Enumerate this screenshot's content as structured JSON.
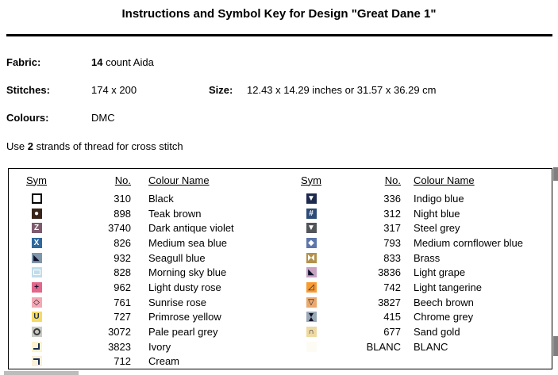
{
  "title": "Instructions and Symbol Key for Design \"Great Dane 1\"",
  "info": {
    "fabric_label": "Fabric:",
    "fabric_count": "14",
    "fabric_rest": " count Aida",
    "stitches_label": "Stitches:",
    "stitches_value": "174 x 200",
    "size_label": "Size:",
    "size_value": "12.43 x 14.29 inches or 31.57 x 36.29 cm",
    "colours_label": "Colours:",
    "colours_value": "DMC",
    "strands_prefix": "Use ",
    "strands_count": "2",
    "strands_suffix": " strands of thread for cross stitch"
  },
  "key_table": {
    "headers": {
      "sym": "Sym",
      "no": "No.",
      "name": "Colour Name"
    },
    "left_rows": [
      {
        "no": "310",
        "name": "Black",
        "sym": {
          "kind": "square-outline",
          "bg": "#ffffff",
          "fg": "#000000"
        }
      },
      {
        "no": "898",
        "name": "Teak brown",
        "sym": {
          "kind": "char",
          "bg": "#3a241a",
          "fg": "#ffffff",
          "char": "●"
        }
      },
      {
        "no": "3740",
        "name": "Dark antique violet",
        "sym": {
          "kind": "char",
          "bg": "#7e5a6d",
          "fg": "#ffffff",
          "char": "Z"
        }
      },
      {
        "no": "826",
        "name": "Medium sea blue",
        "sym": {
          "kind": "char",
          "bg": "#2f689d",
          "fg": "#ffffff",
          "char": "X"
        }
      },
      {
        "no": "932",
        "name": "Seagull blue",
        "sym": {
          "kind": "char",
          "bg": "#8096ab",
          "fg": "#10102a",
          "char": "◣"
        }
      },
      {
        "no": "828",
        "name": "Morning sky blue",
        "sym": {
          "kind": "rect",
          "bg": "#c0dcea",
          "fg": "#ffffff"
        }
      },
      {
        "no": "962",
        "name": "Light dusty rose",
        "sym": {
          "kind": "char",
          "bg": "#e2678b",
          "fg": "#10102a",
          "char": "+"
        }
      },
      {
        "no": "761",
        "name": "Sunrise rose",
        "sym": {
          "kind": "char",
          "bg": "#f2a9b4",
          "fg": "#10102a",
          "char": "◇"
        }
      },
      {
        "no": "727",
        "name": "Primrose yellow",
        "sym": {
          "kind": "char",
          "bg": "#f6da68",
          "fg": "#1d2c55",
          "char": "U"
        }
      },
      {
        "no": "3072",
        "name": "Pale pearl grey",
        "sym": {
          "kind": "ring",
          "bg": "#c7cac4",
          "fg": "#3a3a3a"
        }
      },
      {
        "no": "3823",
        "name": "Ivory",
        "sym": {
          "kind": "corner-br",
          "bg": "#fdf3d0",
          "fg": "#1d2c55"
        }
      },
      {
        "no": "712",
        "name": "Cream",
        "sym": {
          "kind": "corner-tr",
          "bg": "#f8f0da",
          "fg": "#1d2c55"
        }
      }
    ],
    "right_rows": [
      {
        "no": "336",
        "name": "Indigo blue",
        "sym": {
          "kind": "char",
          "bg": "#1c2a4d",
          "fg": "#ffffff",
          "char": "▼"
        }
      },
      {
        "no": "312",
        "name": "Night blue",
        "sym": {
          "kind": "char",
          "bg": "#2c4b76",
          "fg": "#ffffff",
          "char": "#"
        }
      },
      {
        "no": "317",
        "name": "Steel grey",
        "sym": {
          "kind": "char",
          "bg": "#515459",
          "fg": "#ffffff",
          "char": "▼"
        }
      },
      {
        "no": "793",
        "name": "Medium cornflower blue",
        "sym": {
          "kind": "char",
          "bg": "#5d76aa",
          "fg": "#ffffff",
          "char": "◆"
        }
      },
      {
        "no": "833",
        "name": "Brass",
        "sym": {
          "kind": "bowtie",
          "bg": "#b2914a",
          "fg": "#ffffff"
        }
      },
      {
        "no": "3836",
        "name": "Light grape",
        "sym": {
          "kind": "char",
          "bg": "#c9a2c2",
          "fg": "#10102a",
          "char": "◣"
        }
      },
      {
        "no": "742",
        "name": "Light tangerine",
        "sym": {
          "kind": "char",
          "bg": "#f79b31",
          "fg": "#10102a",
          "char": "◿"
        }
      },
      {
        "no": "3827",
        "name": "Beech brown",
        "sym": {
          "kind": "char",
          "bg": "#eba96e",
          "fg": "#10102a",
          "char": "▽"
        }
      },
      {
        "no": "415",
        "name": "Chrome grey",
        "sym": {
          "kind": "hourglass",
          "bg": "#9aa8b5",
          "fg": "#10102a"
        }
      },
      {
        "no": "677",
        "name": "Sand gold",
        "sym": {
          "kind": "char",
          "bg": "#eedaa2",
          "fg": "#10102a",
          "char": "∩"
        }
      },
      {
        "no": "BLANC",
        "name": "BLANC",
        "sym": {
          "kind": "blank",
          "bg": "#fdfcf4",
          "fg": "#fdfcf4"
        }
      }
    ]
  }
}
